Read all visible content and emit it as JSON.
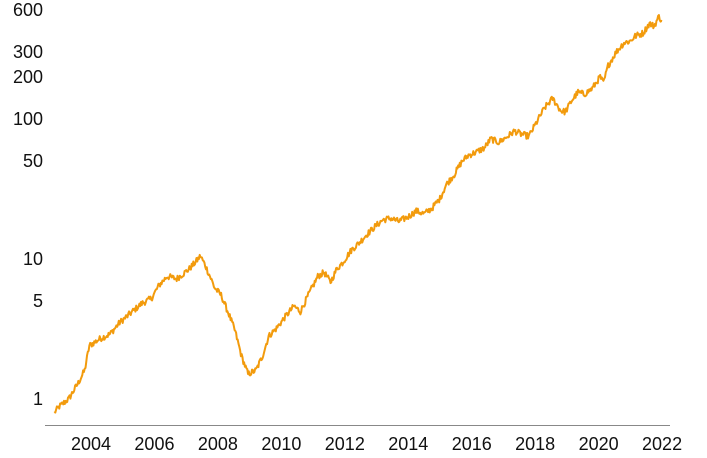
{
  "chart_data": {
    "type": "line",
    "title": "",
    "xlabel": "",
    "ylabel": "",
    "yscale": "log",
    "xlim": [
      2002.55,
      2022.25
    ],
    "ylim": [
      0.65,
      620
    ],
    "xticks": [
      2004,
      2006,
      2008,
      2010,
      2012,
      2014,
      2016,
      2018,
      2020,
      2022
    ],
    "xtick_labels": [
      "2004",
      "2006",
      "2008",
      "2010",
      "2012",
      "2014",
      "2016",
      "2018",
      "2020",
      "2022"
    ],
    "yticks": [
      1,
      5,
      10,
      50,
      100,
      200,
      300,
      600
    ],
    "ytick_labels": [
      "1",
      "5",
      "10",
      "50",
      "100",
      "200",
      "300",
      "600"
    ],
    "grid": false,
    "legend": "none",
    "series": [
      {
        "color": "#F29B0D",
        "x": [
          2002.85,
          2003.0,
          2003.3,
          2003.6,
          2003.8,
          2003.95,
          2004.3,
          2004.6,
          2004.9,
          2005.2,
          2005.6,
          2005.9,
          2006.15,
          2006.4,
          2006.7,
          2006.9,
          2007.1,
          2007.3,
          2007.45,
          2007.6,
          2007.75,
          2007.9,
          2008.1,
          2008.35,
          2008.55,
          2008.75,
          2008.95,
          2009.2,
          2009.4,
          2009.6,
          2009.85,
          2010.1,
          2010.4,
          2010.6,
          2010.9,
          2011.15,
          2011.35,
          2011.55,
          2011.75,
          2011.95,
          2012.2,
          2012.45,
          2012.7,
          2012.95,
          2013.2,
          2013.45,
          2013.7,
          2014.0,
          2014.25,
          2014.5,
          2014.75,
          2015.0,
          2015.2,
          2015.45,
          2015.7,
          2015.9,
          2016.15,
          2016.4,
          2016.6,
          2016.85,
          2017.1,
          2017.35,
          2017.55,
          2017.8,
          2018.05,
          2018.3,
          2018.55,
          2018.8,
          2018.95,
          2019.15,
          2019.35,
          2019.55,
          2019.8,
          2020.05,
          2020.15,
          2020.3,
          2020.55,
          2020.8,
          2021.0,
          2021.15,
          2021.4,
          2021.6,
          2021.75,
          2021.9,
          2022.0
        ],
        "y": [
          0.8,
          0.88,
          1.0,
          1.3,
          1.6,
          2.4,
          2.7,
          2.9,
          3.5,
          4.0,
          4.8,
          5.2,
          6.5,
          7.5,
          7.2,
          7.8,
          8.5,
          9.5,
          10.5,
          9.0,
          7.5,
          6.2,
          5.5,
          4.0,
          3.0,
          2.0,
          1.5,
          1.6,
          2.0,
          2.8,
          3.2,
          3.8,
          4.6,
          4.2,
          5.8,
          7.5,
          8.0,
          6.8,
          8.5,
          9.5,
          11.5,
          13.0,
          15.0,
          17.0,
          19.0,
          19.5,
          18.5,
          20.0,
          22.0,
          21.0,
          23.0,
          27.0,
          34.0,
          40.0,
          50.0,
          55.0,
          58.0,
          62.0,
          72.0,
          68.0,
          74.0,
          82.0,
          78.0,
          75.0,
          95.0,
          120.0,
          140.0,
          115.0,
          112.0,
          135.0,
          155.0,
          150.0,
          165.0,
          200.0,
          180.0,
          240.0,
          300.0,
          350.0,
          360.0,
          390.0,
          410.0,
          480.0,
          460.0,
          540.0,
          500.0
        ]
      }
    ]
  }
}
